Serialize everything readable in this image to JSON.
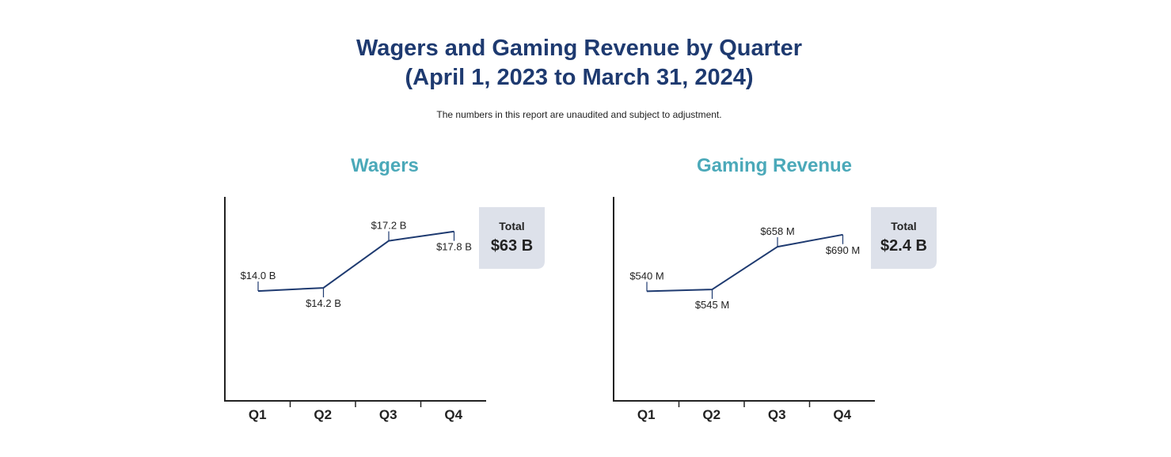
{
  "header": {
    "title_line1": "Wagers and Gaming Revenue by Quarter",
    "title_line2": "(April 1, 2023 to March 31, 2024)",
    "disclaimer": "The numbers in this report are unaudited and subject to adjustment."
  },
  "colors": {
    "title": "#1e3a70",
    "chart_title": "#4ba9b9",
    "line": "#1e3a70",
    "axis": "#222222",
    "text": "#222222",
    "total_box": "#dde1ea"
  },
  "chart_data": [
    {
      "type": "line",
      "title": "Wagers",
      "categories": [
        "Q1",
        "Q2",
        "Q3",
        "Q4"
      ],
      "series": [
        {
          "values": [
            14.0,
            14.2,
            17.2,
            17.8
          ]
        }
      ],
      "data_labels": [
        "$14.0 B",
        "$14.2 B",
        "$17.2 B",
        "$17.8 B"
      ],
      "total": {
        "label": "Total",
        "value": "$63 B"
      },
      "xlabel": "",
      "ylabel": "",
      "ylim": [
        7,
        20
      ],
      "grid": false
    },
    {
      "type": "line",
      "title": "Gaming Revenue",
      "categories": [
        "Q1",
        "Q2",
        "Q3",
        "Q4"
      ],
      "series": [
        {
          "values": [
            540,
            545,
            658,
            690
          ]
        }
      ],
      "data_labels": [
        "$540 M",
        "$545 M",
        "$658 M",
        "$690 M"
      ],
      "total": {
        "label": "Total",
        "value": "$2.4 B"
      },
      "xlabel": "",
      "ylabel": "",
      "ylim": [
        250,
        790
      ],
      "grid": false
    }
  ]
}
